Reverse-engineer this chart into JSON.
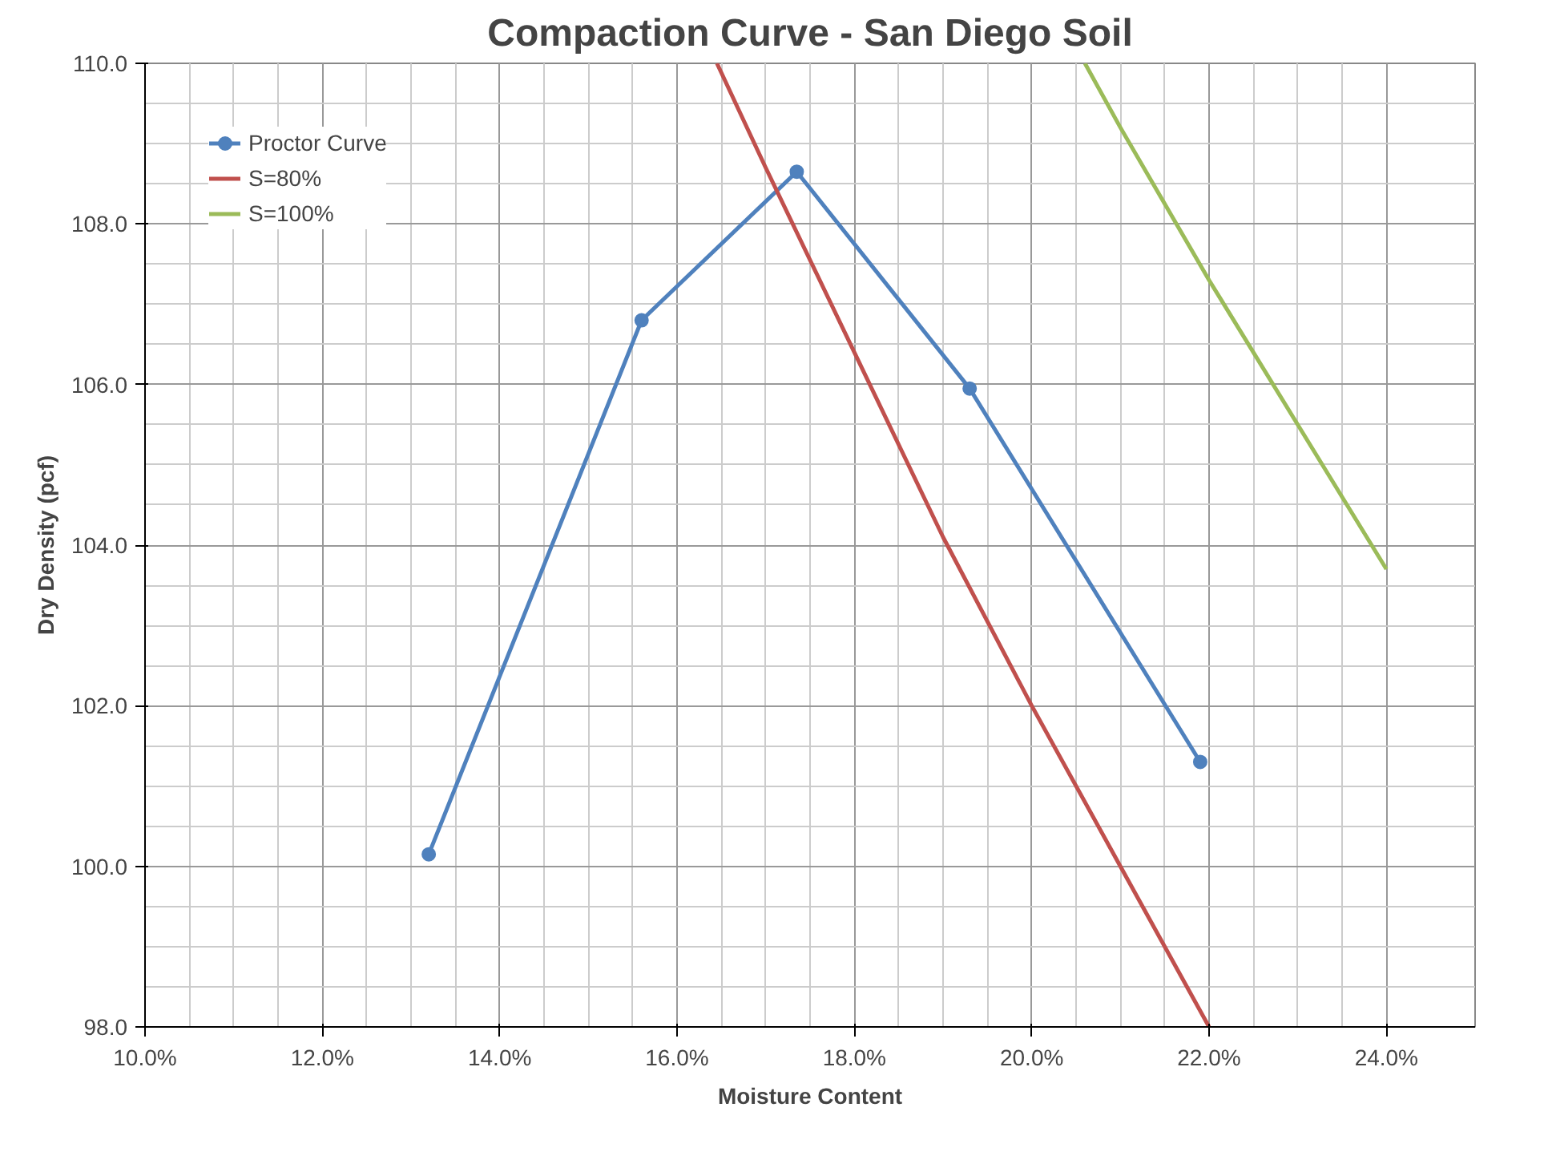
{
  "chart_data": {
    "type": "line",
    "title": "Compaction Curve - San Diego Soil",
    "xlabel": "Moisture Content",
    "ylabel": "Dry Density (pcf)",
    "xlim": [
      10,
      25
    ],
    "ylim": [
      98,
      110
    ],
    "xticks": [
      {
        "value": 10,
        "label": "10.0%"
      },
      {
        "value": 12,
        "label": "12.0%"
      },
      {
        "value": 14,
        "label": "14.0%"
      },
      {
        "value": 16,
        "label": "16.0%"
      },
      {
        "value": 18,
        "label": "18.0%"
      },
      {
        "value": 20,
        "label": "20.0%"
      },
      {
        "value": 22,
        "label": "22.0%"
      },
      {
        "value": 24,
        "label": "24.0%"
      }
    ],
    "yticks": [
      {
        "value": 98,
        "label": "98.0"
      },
      {
        "value": 100,
        "label": "100.0"
      },
      {
        "value": 102,
        "label": "102.0"
      },
      {
        "value": 104,
        "label": "104.0"
      },
      {
        "value": 106,
        "label": "106.0"
      },
      {
        "value": 108,
        "label": "108.0"
      },
      {
        "value": 110,
        "label": "110.0"
      }
    ],
    "grid": true,
    "legend": "top left",
    "series": [
      {
        "name": "Proctor Curve",
        "color": "#4f81bd",
        "marker": "circle",
        "x": [
          13.2,
          15.6,
          17.35,
          19.3,
          21.9
        ],
        "values": [
          100.15,
          106.8,
          108.65,
          105.95,
          101.3
        ]
      },
      {
        "name": "S=80%",
        "color": "#c0504d",
        "marker": "none",
        "x": [
          16.45,
          17,
          18,
          19,
          20,
          21,
          22
        ],
        "values": [
          110.0,
          108.7,
          106.4,
          104.1,
          102.0,
          100.0,
          98.0
        ]
      },
      {
        "name": "S=100%",
        "color": "#9bbb59",
        "marker": "none",
        "x": [
          20.6,
          21,
          22,
          23,
          24
        ],
        "values": [
          110.0,
          109.2,
          107.3,
          105.5,
          103.7
        ]
      }
    ]
  }
}
